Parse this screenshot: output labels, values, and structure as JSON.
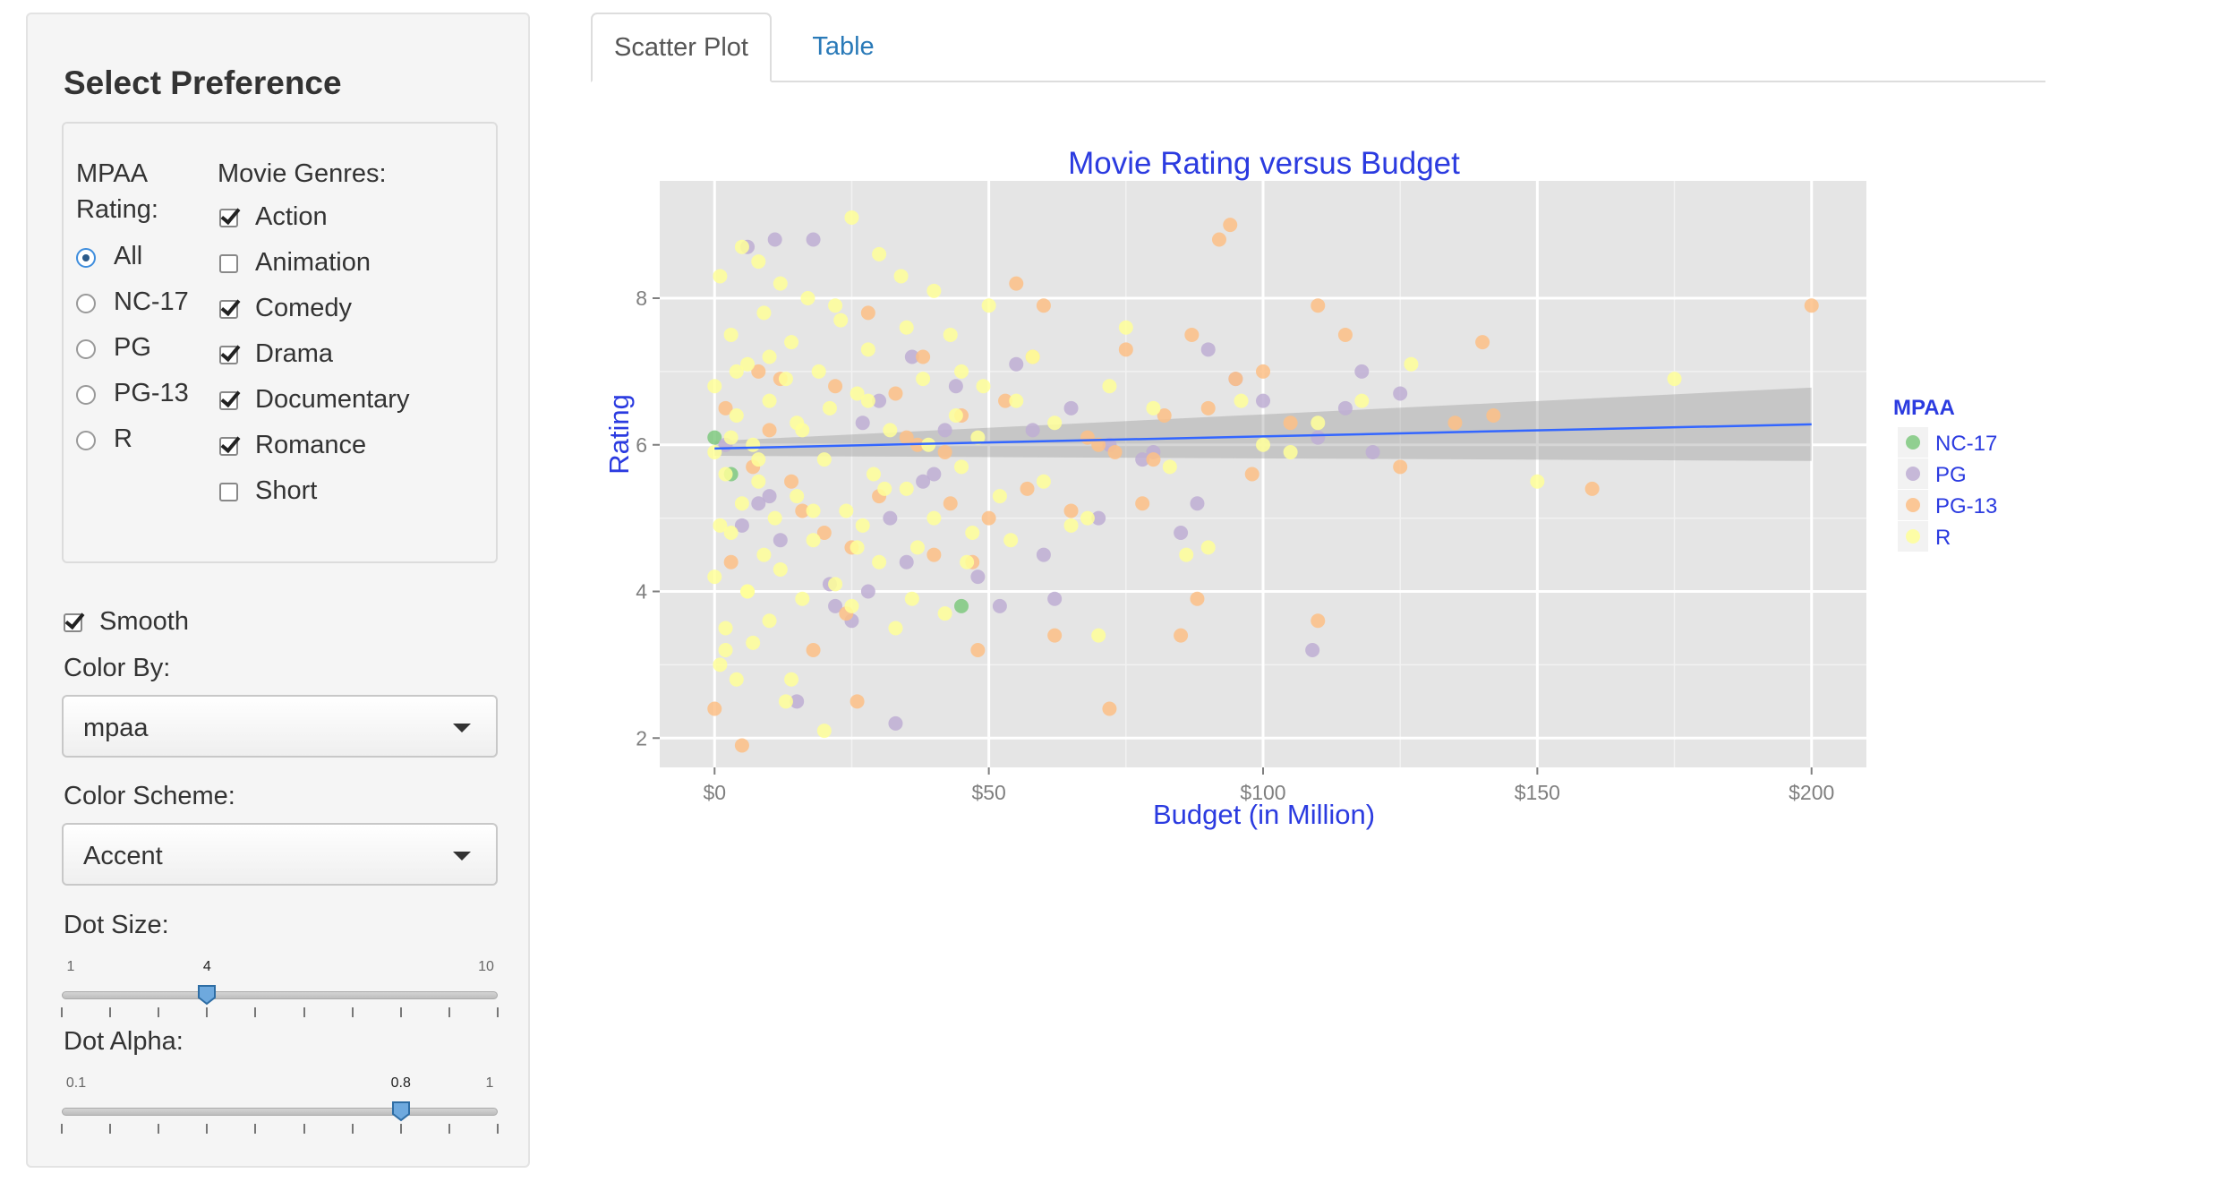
{
  "sidebar": {
    "title": "Select Preference",
    "mpaa": {
      "label_line1": "MPAA",
      "label_line2": "Rating:",
      "options": [
        "All",
        "NC-17",
        "PG",
        "PG-13",
        "R"
      ],
      "selected": "All"
    },
    "genres": {
      "label": "Movie Genres:",
      "items": [
        {
          "label": "Action",
          "checked": true
        },
        {
          "label": "Animation",
          "checked": false
        },
        {
          "label": "Comedy",
          "checked": true
        },
        {
          "label": "Drama",
          "checked": true
        },
        {
          "label": "Documentary",
          "checked": true
        },
        {
          "label": "Romance",
          "checked": true
        },
        {
          "label": "Short",
          "checked": false
        }
      ]
    },
    "smooth": {
      "label": "Smooth",
      "checked": true
    },
    "color_by": {
      "label": "Color By:",
      "value": "mpaa"
    },
    "color_scheme": {
      "label": "Color Scheme:",
      "value": "Accent"
    },
    "dot_size": {
      "label": "Dot Size:",
      "min": "1",
      "max": "10",
      "value": "4",
      "min_num": 1,
      "max_num": 10,
      "value_num": 4
    },
    "dot_alpha": {
      "label": "Dot Alpha:",
      "min": "0.1",
      "max": "1",
      "value": "0.8",
      "min_num": 0.1,
      "max_num": 1,
      "value_num": 0.8
    }
  },
  "tabs": [
    {
      "label": "Scatter Plot",
      "active": true
    },
    {
      "label": "Table",
      "active": false
    }
  ],
  "colors": {
    "accent_blue": "#2b3be0",
    "link_blue": "#2a7ab8",
    "panel_bg": "#e5e5e5",
    "NC-17": "#7fc97f",
    "PG": "#beaed4",
    "PG-13": "#fdc086",
    "R": "#ffff99",
    "smooth_line": "#3366ff"
  },
  "chart_data": {
    "type": "scatter",
    "title": "Movie Rating versus Budget",
    "xlabel": "Budget (in Million)",
    "ylabel": "Rating",
    "xlim": [
      -10,
      210
    ],
    "ylim": [
      1.6,
      9.6
    ],
    "x_ticks": [
      0,
      50,
      100,
      150,
      200
    ],
    "x_tick_labels": [
      "$0",
      "$50",
      "$100",
      "$150",
      "$200"
    ],
    "y_ticks": [
      2,
      4,
      6,
      8
    ],
    "y_tick_labels": [
      "2",
      "4",
      "6",
      "8"
    ],
    "grid": true,
    "legend": {
      "title": "MPAA",
      "position": "right",
      "entries": [
        "NC-17",
        "PG",
        "PG-13",
        "R"
      ]
    },
    "smooth": {
      "x": [
        0,
        200
      ],
      "y": [
        5.95,
        6.28
      ],
      "band_lower": [
        5.85,
        5.78
      ],
      "band_upper": [
        6.05,
        6.78
      ]
    },
    "series": [
      {
        "name": "NC-17",
        "x": [
          0,
          3,
          45
        ],
        "y": [
          6.1,
          5.6,
          3.8
        ]
      },
      {
        "name": "PG",
        "x": [
          2,
          6,
          8,
          11,
          18,
          21,
          25,
          28,
          32,
          35,
          38,
          42,
          48,
          55,
          60,
          65,
          72,
          78,
          85,
          90,
          95,
          100,
          110,
          115,
          118,
          120,
          125,
          15,
          22,
          30,
          10,
          5,
          40,
          52,
          62,
          80,
          88,
          12,
          27,
          36,
          44,
          58,
          70,
          33,
          109
        ],
        "y": [
          6.0,
          8.7,
          5.2,
          8.8,
          8.8,
          4.1,
          3.6,
          4.0,
          5.0,
          4.4,
          5.5,
          6.2,
          4.2,
          7.1,
          4.5,
          6.5,
          6.0,
          5.8,
          4.8,
          7.3,
          6.9,
          6.6,
          6.1,
          6.5,
          7.0,
          5.9,
          6.7,
          2.5,
          3.8,
          6.6,
          5.3,
          4.9,
          5.6,
          3.8,
          3.9,
          5.9,
          5.2,
          4.7,
          6.3,
          7.2,
          6.8,
          6.2,
          5.0,
          2.2,
          3.2
        ]
      },
      {
        "name": "PG-13",
        "x": [
          0,
          2,
          5,
          8,
          10,
          14,
          18,
          22,
          25,
          28,
          30,
          35,
          38,
          40,
          42,
          45,
          48,
          50,
          55,
          60,
          65,
          70,
          72,
          75,
          80,
          82,
          85,
          88,
          90,
          92,
          94,
          95,
          98,
          100,
          105,
          110,
          115,
          125,
          135,
          140,
          142,
          160,
          200,
          3,
          7,
          12,
          16,
          20,
          24,
          33,
          37,
          43,
          47,
          53,
          57,
          62,
          68,
          78,
          87,
          110,
          58,
          73,
          26
        ],
        "y": [
          2.4,
          6.5,
          1.9,
          7.0,
          6.2,
          5.5,
          3.2,
          6.8,
          4.6,
          7.8,
          5.3,
          6.1,
          7.2,
          4.5,
          5.9,
          6.4,
          3.2,
          5.0,
          8.2,
          7.9,
          5.1,
          6.0,
          2.4,
          7.3,
          5.8,
          6.4,
          3.4,
          3.9,
          6.5,
          8.8,
          9.0,
          6.9,
          5.6,
          7.0,
          6.3,
          7.9,
          7.5,
          5.7,
          6.3,
          7.4,
          6.4,
          5.4,
          7.9,
          4.4,
          5.7,
          6.9,
          5.1,
          4.8,
          3.7,
          6.7,
          6.0,
          5.2,
          4.4,
          6.6,
          5.4,
          3.4,
          6.1,
          5.2,
          7.5,
          3.6,
          7.2,
          5.9,
          2.5
        ]
      },
      {
        "name": "R",
        "x": [
          0,
          0,
          1,
          1,
          2,
          2,
          3,
          3,
          4,
          4,
          5,
          5,
          6,
          6,
          7,
          7,
          8,
          8,
          9,
          9,
          10,
          10,
          11,
          12,
          12,
          13,
          14,
          14,
          15,
          16,
          16,
          17,
          18,
          19,
          20,
          20,
          21,
          22,
          23,
          24,
          25,
          25,
          26,
          27,
          28,
          29,
          30,
          30,
          32,
          33,
          35,
          35,
          37,
          38,
          40,
          40,
          42,
          44,
          45,
          45,
          47,
          48,
          50,
          52,
          54,
          55,
          58,
          60,
          62,
          65,
          68,
          70,
          72,
          75,
          80,
          83,
          86,
          90,
          96,
          100,
          105,
          110,
          118,
          127,
          150,
          175,
          0,
          1,
          2,
          3,
          4,
          6,
          8,
          10,
          13,
          15,
          18,
          22,
          26,
          28,
          31,
          34,
          36,
          39,
          43,
          46,
          49
        ],
        "y": [
          4.2,
          6.8,
          3.0,
          8.3,
          5.6,
          3.5,
          7.5,
          4.8,
          6.4,
          2.8,
          8.7,
          5.2,
          4.0,
          7.1,
          6.0,
          3.3,
          8.5,
          5.5,
          4.5,
          7.8,
          6.6,
          3.6,
          5.0,
          8.2,
          4.3,
          6.9,
          2.8,
          7.4,
          5.3,
          6.2,
          3.9,
          8.0,
          4.7,
          7.0,
          5.8,
          2.1,
          6.5,
          4.1,
          7.7,
          5.1,
          9.1,
          3.8,
          6.7,
          4.9,
          7.3,
          5.6,
          8.6,
          4.4,
          6.2,
          3.5,
          7.6,
          5.4,
          4.6,
          6.9,
          8.1,
          5.0,
          3.7,
          6.4,
          5.7,
          7.0,
          4.8,
          6.1,
          7.9,
          5.3,
          4.7,
          6.6,
          7.2,
          5.5,
          6.3,
          4.9,
          5.0,
          3.4,
          6.8,
          7.6,
          6.5,
          5.7,
          4.5,
          4.6,
          6.6,
          6.0,
          5.9,
          6.3,
          6.6,
          7.1,
          5.5,
          6.9,
          5.9,
          4.9,
          3.2,
          6.1,
          7.0,
          4.0,
          5.8,
          7.2,
          2.5,
          6.3,
          5.1,
          7.9,
          4.6,
          6.6,
          5.4,
          8.3,
          3.9,
          6.0,
          7.5,
          4.4,
          6.8
        ]
      }
    ]
  }
}
